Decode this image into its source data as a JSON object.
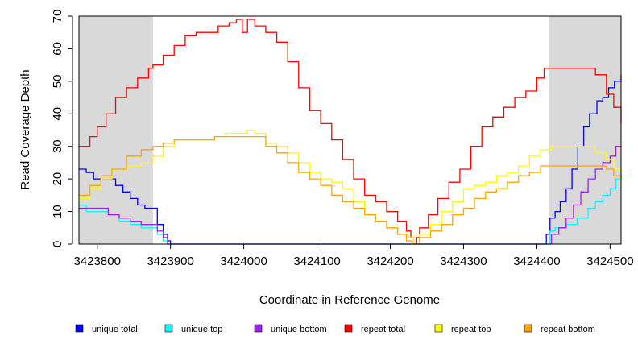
{
  "chart_data": {
    "type": "line",
    "title": "",
    "xlabel": "Coordinate in Reference Genome",
    "ylabel": "Read Coverage Depth",
    "xlim": [
      3423775,
      3424515
    ],
    "ylim": [
      0,
      70
    ],
    "x_ticks": [
      3423800,
      3423900,
      3424000,
      3424100,
      3424200,
      3424300,
      3424400,
      3424500
    ],
    "y_ticks": [
      0,
      10,
      20,
      30,
      40,
      50,
      60,
      70
    ],
    "grid": false,
    "legend_position": "bottom",
    "shaded_regions": [
      {
        "x_start": 3423775,
        "x_end": 3423876,
        "color": "#d9d9d9"
      },
      {
        "x_start": 3424416,
        "x_end": 3424515,
        "color": "#d9d9d9"
      }
    ],
    "series": [
      {
        "name": "unique total",
        "color": "#0000ff",
        "points": [
          [
            3423775,
            23
          ],
          [
            3423785,
            22
          ],
          [
            3423795,
            20
          ],
          [
            3423815,
            20
          ],
          [
            3423825,
            18
          ],
          [
            3423835,
            16
          ],
          [
            3423845,
            14
          ],
          [
            3423855,
            12
          ],
          [
            3423865,
            11
          ],
          [
            3423876,
            11
          ],
          [
            3423882,
            6
          ],
          [
            3423890,
            3
          ],
          [
            3423896,
            1
          ],
          [
            3423900,
            0
          ],
          [
            3424410,
            0
          ],
          [
            3424413,
            3
          ],
          [
            3424418,
            8
          ],
          [
            3424425,
            10
          ],
          [
            3424432,
            13
          ],
          [
            3424440,
            17
          ],
          [
            3424448,
            23
          ],
          [
            3424456,
            30
          ],
          [
            3424464,
            36
          ],
          [
            3424472,
            40
          ],
          [
            3424482,
            44
          ],
          [
            3424490,
            45
          ],
          [
            3424498,
            48
          ],
          [
            3424506,
            50
          ],
          [
            3424515,
            52
          ]
        ]
      },
      {
        "name": "unique top",
        "color": "#00ffff",
        "points": [
          [
            3423775,
            12
          ],
          [
            3423785,
            10
          ],
          [
            3423800,
            10
          ],
          [
            3423815,
            9
          ],
          [
            3423830,
            7
          ],
          [
            3423845,
            6
          ],
          [
            3423860,
            5
          ],
          [
            3423876,
            5
          ],
          [
            3423882,
            3
          ],
          [
            3423890,
            1
          ],
          [
            3423896,
            0
          ],
          [
            3424412,
            0
          ],
          [
            3424418,
            4
          ],
          [
            3424425,
            5
          ],
          [
            3424440,
            6
          ],
          [
            3424455,
            8
          ],
          [
            3424470,
            11
          ],
          [
            3424480,
            13
          ],
          [
            3424490,
            15
          ],
          [
            3424500,
            17
          ],
          [
            3424508,
            20
          ],
          [
            3424515,
            22
          ]
        ]
      },
      {
        "name": "unique bottom",
        "color": "#a020f0",
        "points": [
          [
            3423775,
            11
          ],
          [
            3423790,
            11
          ],
          [
            3423805,
            11
          ],
          [
            3423815,
            9
          ],
          [
            3423830,
            8
          ],
          [
            3423845,
            7
          ],
          [
            3423860,
            6
          ],
          [
            3423876,
            6
          ],
          [
            3423882,
            4
          ],
          [
            3423890,
            2
          ],
          [
            3423896,
            0
          ],
          [
            3424412,
            0
          ],
          [
            3424420,
            3
          ],
          [
            3424430,
            5
          ],
          [
            3424440,
            8
          ],
          [
            3424450,
            12
          ],
          [
            3424460,
            16
          ],
          [
            3424470,
            20
          ],
          [
            3424480,
            23
          ],
          [
            3424490,
            25
          ],
          [
            3424500,
            27
          ],
          [
            3424508,
            30
          ],
          [
            3424515,
            30
          ]
        ]
      },
      {
        "name": "repeat total",
        "color": "#ff0000",
        "points": [
          [
            3423775,
            30
          ],
          [
            3423790,
            33
          ],
          [
            3423800,
            36
          ],
          [
            3423812,
            40
          ],
          [
            3423825,
            45
          ],
          [
            3423840,
            48
          ],
          [
            3423855,
            51
          ],
          [
            3423870,
            54
          ],
          [
            3423876,
            55
          ],
          [
            3423890,
            58
          ],
          [
            3423905,
            61
          ],
          [
            3423920,
            64
          ],
          [
            3423935,
            65
          ],
          [
            3423950,
            65
          ],
          [
            3423965,
            67
          ],
          [
            3423980,
            68
          ],
          [
            3423990,
            69
          ],
          [
            3423998,
            65
          ],
          [
            3424005,
            69
          ],
          [
            3424015,
            67
          ],
          [
            3424030,
            65
          ],
          [
            3424045,
            62
          ],
          [
            3424060,
            56
          ],
          [
            3424075,
            48
          ],
          [
            3424090,
            41
          ],
          [
            3424105,
            37
          ],
          [
            3424120,
            32
          ],
          [
            3424135,
            26
          ],
          [
            3424150,
            20
          ],
          [
            3424165,
            15
          ],
          [
            3424180,
            13
          ],
          [
            3424195,
            10
          ],
          [
            3424210,
            7
          ],
          [
            3424222,
            4
          ],
          [
            3424228,
            2
          ],
          [
            3424232,
            0
          ],
          [
            3424236,
            2
          ],
          [
            3424240,
            5
          ],
          [
            3424252,
            9
          ],
          [
            3424265,
            14
          ],
          [
            3424280,
            19
          ],
          [
            3424295,
            23
          ],
          [
            3424310,
            30
          ],
          [
            3424325,
            36
          ],
          [
            3424340,
            39
          ],
          [
            3424355,
            42
          ],
          [
            3424370,
            45
          ],
          [
            3424385,
            47
          ],
          [
            3424400,
            51
          ],
          [
            3424410,
            54
          ],
          [
            3424420,
            54
          ],
          [
            3424440,
            54
          ],
          [
            3424460,
            54
          ],
          [
            3424480,
            52
          ],
          [
            3424495,
            46
          ],
          [
            3424505,
            42
          ],
          [
            3424515,
            37
          ]
        ]
      },
      {
        "name": "repeat top",
        "color": "#ffff00",
        "points": [
          [
            3423775,
            14
          ],
          [
            3423790,
            17
          ],
          [
            3423805,
            20
          ],
          [
            3423820,
            23
          ],
          [
            3423840,
            24
          ],
          [
            3423860,
            25
          ],
          [
            3423876,
            27
          ],
          [
            3423890,
            30
          ],
          [
            3423905,
            32
          ],
          [
            3423920,
            32
          ],
          [
            3423940,
            32
          ],
          [
            3423960,
            33
          ],
          [
            3423975,
            34
          ],
          [
            3423990,
            34
          ],
          [
            3424005,
            35
          ],
          [
            3424015,
            34
          ],
          [
            3424030,
            31
          ],
          [
            3424045,
            30
          ],
          [
            3424060,
            28
          ],
          [
            3424075,
            25
          ],
          [
            3424090,
            22
          ],
          [
            3424105,
            20
          ],
          [
            3424120,
            19
          ],
          [
            3424135,
            17
          ],
          [
            3424150,
            13
          ],
          [
            3424165,
            9
          ],
          [
            3424180,
            7
          ],
          [
            3424195,
            5
          ],
          [
            3424210,
            3
          ],
          [
            3424225,
            2
          ],
          [
            3424232,
            0
          ],
          [
            3424240,
            3
          ],
          [
            3424255,
            6
          ],
          [
            3424270,
            10
          ],
          [
            3424285,
            13
          ],
          [
            3424300,
            17
          ],
          [
            3424315,
            18
          ],
          [
            3424330,
            19
          ],
          [
            3424345,
            21
          ],
          [
            3424360,
            22
          ],
          [
            3424375,
            24
          ],
          [
            3424390,
            27
          ],
          [
            3424405,
            29
          ],
          [
            3424420,
            30
          ],
          [
            3424440,
            30
          ],
          [
            3424460,
            30
          ],
          [
            3424480,
            28
          ],
          [
            3424495,
            26
          ],
          [
            3424505,
            23
          ],
          [
            3424515,
            18
          ]
        ]
      },
      {
        "name": "repeat bottom",
        "color": "#ffa500",
        "points": [
          [
            3423775,
            15
          ],
          [
            3423790,
            18
          ],
          [
            3423805,
            21
          ],
          [
            3423820,
            23
          ],
          [
            3423840,
            27
          ],
          [
            3423860,
            29
          ],
          [
            3423876,
            30
          ],
          [
            3423890,
            31
          ],
          [
            3423905,
            32
          ],
          [
            3423920,
            32
          ],
          [
            3423940,
            32
          ],
          [
            3423960,
            33
          ],
          [
            3423975,
            33
          ],
          [
            3423990,
            33
          ],
          [
            3424005,
            33
          ],
          [
            3424015,
            33
          ],
          [
            3424030,
            30
          ],
          [
            3424045,
            28
          ],
          [
            3424060,
            25
          ],
          [
            3424075,
            22
          ],
          [
            3424090,
            20
          ],
          [
            3424105,
            18
          ],
          [
            3424120,
            15
          ],
          [
            3424135,
            13
          ],
          [
            3424150,
            11
          ],
          [
            3424165,
            9
          ],
          [
            3424180,
            7
          ],
          [
            3424195,
            5
          ],
          [
            3424210,
            3
          ],
          [
            3424222,
            1
          ],
          [
            3424230,
            0
          ],
          [
            3424240,
            2
          ],
          [
            3424255,
            4
          ],
          [
            3424270,
            6
          ],
          [
            3424285,
            9
          ],
          [
            3424300,
            11
          ],
          [
            3424315,
            14
          ],
          [
            3424330,
            16
          ],
          [
            3424345,
            17
          ],
          [
            3424360,
            19
          ],
          [
            3424375,
            21
          ],
          [
            3424390,
            22
          ],
          [
            3424405,
            24
          ],
          [
            3424420,
            24
          ],
          [
            3424440,
            24
          ],
          [
            3424460,
            24
          ],
          [
            3424480,
            24
          ],
          [
            3424495,
            23
          ],
          [
            3424505,
            21
          ],
          [
            3424515,
            20
          ]
        ]
      }
    ]
  }
}
